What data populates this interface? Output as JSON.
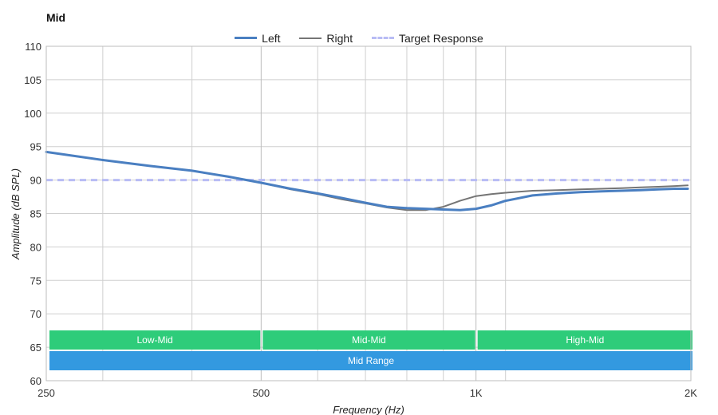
{
  "chart_data": {
    "type": "line",
    "title": "Mid",
    "xlabel": "Frequency (Hz)",
    "ylabel": "Amplitude (dB SPL)",
    "x_scale": "log",
    "xlim": [
      250,
      2000
    ],
    "ylim": [
      60,
      110
    ],
    "x_ticks": [
      {
        "value": 250,
        "label": "250"
      },
      {
        "value": 500,
        "label": "500"
      },
      {
        "value": 1000,
        "label": "1K"
      },
      {
        "value": 2000,
        "label": "2K"
      }
    ],
    "x_minor_gridlines": [
      300,
      400,
      600,
      700,
      800,
      900,
      1100
    ],
    "y_ticks": [
      60,
      65,
      70,
      75,
      80,
      85,
      90,
      95,
      100,
      105,
      110
    ],
    "grid": true,
    "legend_placement": "top-center",
    "series": [
      {
        "name": "Left",
        "color": "#4a7fc1",
        "style": "solid",
        "points": [
          [
            250,
            94.2
          ],
          [
            300,
            93.0
          ],
          [
            350,
            92.1
          ],
          [
            400,
            91.4
          ],
          [
            450,
            90.5
          ],
          [
            500,
            89.6
          ],
          [
            550,
            88.7
          ],
          [
            600,
            88.0
          ],
          [
            650,
            87.3
          ],
          [
            700,
            86.6
          ],
          [
            750,
            86.0
          ],
          [
            800,
            85.8
          ],
          [
            850,
            85.7
          ],
          [
            900,
            85.6
          ],
          [
            950,
            85.5
          ],
          [
            1000,
            85.7
          ],
          [
            1050,
            86.2
          ],
          [
            1100,
            86.9
          ],
          [
            1200,
            87.7
          ],
          [
            1300,
            88.0
          ],
          [
            1400,
            88.2
          ],
          [
            1500,
            88.3
          ],
          [
            1600,
            88.4
          ],
          [
            1700,
            88.5
          ],
          [
            1800,
            88.6
          ],
          [
            1900,
            88.7
          ],
          [
            1980,
            88.7
          ]
        ]
      },
      {
        "name": "Right",
        "color": "#757575",
        "style": "solid",
        "points": [
          [
            250,
            94.2
          ],
          [
            300,
            93.0
          ],
          [
            350,
            92.1
          ],
          [
            400,
            91.4
          ],
          [
            450,
            90.5
          ],
          [
            500,
            89.6
          ],
          [
            550,
            88.6
          ],
          [
            600,
            87.9
          ],
          [
            650,
            87.1
          ],
          [
            700,
            86.5
          ],
          [
            750,
            85.9
          ],
          [
            800,
            85.5
          ],
          [
            850,
            85.5
          ],
          [
            900,
            86.0
          ],
          [
            950,
            86.9
          ],
          [
            1000,
            87.6
          ],
          [
            1050,
            87.9
          ],
          [
            1100,
            88.1
          ],
          [
            1200,
            88.4
          ],
          [
            1300,
            88.5
          ],
          [
            1400,
            88.6
          ],
          [
            1500,
            88.7
          ],
          [
            1600,
            88.8
          ],
          [
            1700,
            88.9
          ],
          [
            1800,
            89.0
          ],
          [
            1900,
            89.1
          ],
          [
            1980,
            89.2
          ]
        ]
      },
      {
        "name": "Target Response",
        "color": "#b8bcf5",
        "style": "dashed",
        "points": [
          [
            250,
            90
          ],
          [
            2000,
            90
          ]
        ]
      }
    ],
    "bands": [
      {
        "label": "Low-Mid",
        "x_start": 250,
        "x_end": 500,
        "row": 1,
        "color": "#2ecc7a"
      },
      {
        "label": "Mid-Mid",
        "x_start": 500,
        "x_end": 1000,
        "row": 1,
        "color": "#2ecc7a"
      },
      {
        "label": "High-Mid",
        "x_start": 1000,
        "x_end": 2000,
        "row": 1,
        "color": "#2ecc7a"
      },
      {
        "label": "Mid Range",
        "x_start": 250,
        "x_end": 2000,
        "row": 2,
        "color": "#3399e0"
      }
    ]
  }
}
